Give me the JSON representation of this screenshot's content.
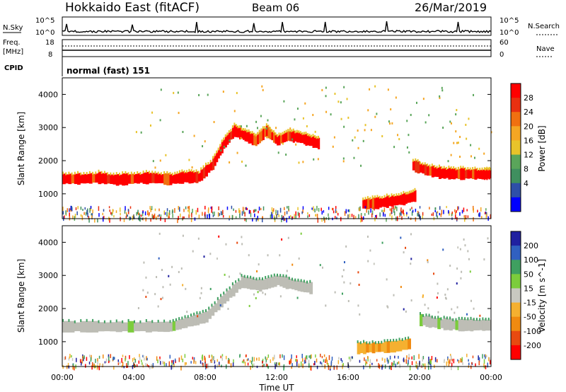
{
  "header": {
    "station": "Hokkaido East (fitACF)",
    "beam": "Beam 06",
    "date": "26/Mar/2019"
  },
  "noise_panel": {
    "left_label": "N.Sky",
    "right_label": "N.Search",
    "ticks_left": [
      "10^5",
      "10^0"
    ],
    "ticks_right": [
      "10^5",
      "10^0"
    ]
  },
  "freq_panel": {
    "left_label_1": "Freq.",
    "left_label_2": "[MHz]",
    "right_label": "Nave",
    "ticks_left": [
      "18",
      "8"
    ],
    "ticks_right": [
      "60",
      "0"
    ],
    "cpid_label": "CPID",
    "cpid_text": "normal (fast) 151"
  },
  "colors": {
    "power_scale": [
      "#0000ff",
      "#2e4fa8",
      "#3f8f5f",
      "#5aa55a",
      "#e8c32a",
      "#f5a623",
      "#f07010",
      "#e83010",
      "#ff0000"
    ],
    "velocity_scale": [
      "#2020a0",
      "#3060c0",
      "#3fa060",
      "#7ccc3c",
      "#c8c8c0",
      "#f5b030",
      "#f08a10",
      "#e84a10",
      "#ff0000"
    ],
    "ground_scatter": "#bdbdb5"
  },
  "chart_data": [
    {
      "type": "heatmap",
      "title": "Power",
      "xlabel": "Time UT",
      "ylabel": "Slant Range [km]",
      "x_ticks": [
        "00:00",
        "04:00",
        "08:00",
        "12:00",
        "16:00",
        "20:00",
        "00:00"
      ],
      "y_ticks": [
        "1000",
        "2000",
        "3000",
        "4000"
      ],
      "ylim": [
        250,
        4500
      ],
      "xlim_hours": [
        0,
        24
      ],
      "colorbar_label": "Power [dB]",
      "colorbar_ticks": [
        "4",
        "8",
        "12",
        "16",
        "20",
        "24",
        "28"
      ],
      "colorbar_range": [
        0,
        32
      ],
      "bands": [
        {
          "t": [
            0.0,
            1.0,
            2.0,
            3.0,
            4.0,
            5.0,
            6.0,
            6.8,
            7.6,
            8.4,
            9.0,
            9.6,
            10.2,
            10.8,
            11.4,
            12.0,
            12.6,
            13.2,
            13.8,
            14.4
          ],
          "r": [
            1450,
            1450,
            1480,
            1420,
            1460,
            1480,
            1430,
            1500,
            1500,
            1900,
            2500,
            2900,
            2750,
            2600,
            2900,
            2600,
            2750,
            2700,
            2600,
            2500
          ],
          "power": 26
        },
        {
          "t": [
            19.6,
            20.4,
            21.2,
            22.0,
            22.8,
            23.6,
            24.0
          ],
          "r": [
            1850,
            1700,
            1620,
            1600,
            1600,
            1580,
            1600
          ],
          "power": 27
        },
        {
          "t": [
            16.8,
            17.6,
            18.4,
            19.2,
            19.8
          ],
          "r": [
            690,
            720,
            780,
            850,
            950
          ],
          "power": 28
        }
      ]
    },
    {
      "type": "heatmap",
      "title": "Velocity",
      "xlabel": "Time UT",
      "ylabel": "Slant Range [km]",
      "x_ticks": [
        "00:00",
        "04:00",
        "08:00",
        "12:00",
        "16:00",
        "20:00",
        "00:00"
      ],
      "y_ticks": [
        "1000",
        "2000",
        "3000",
        "4000"
      ],
      "ylim": [
        250,
        4500
      ],
      "xlim_hours": [
        0,
        24
      ],
      "colorbar_label": "Velocity [m s^-1]",
      "colorbar_ticks": [
        "200",
        "100",
        "50",
        "15",
        "-15",
        "-50",
        "-100",
        "-200"
      ],
      "colorbar_range": [
        -250,
        250
      ],
      "bands": [
        {
          "t": [
            0.0,
            2.0,
            4.0,
            6.0,
            7.0,
            8.0,
            9.0,
            10.0,
            11.0,
            12.0,
            13.0,
            14.0
          ],
          "r": [
            1450,
            1450,
            1450,
            1450,
            1600,
            1750,
            2300,
            2800,
            2700,
            2850,
            2700,
            2600
          ],
          "velocity": 0
        },
        {
          "t": [
            20.0,
            21.0,
            22.0,
            23.0,
            24.0
          ],
          "r": [
            1650,
            1550,
            1500,
            1500,
            1500
          ],
          "velocity": 0
        },
        {
          "t": [
            16.5,
            17.5,
            18.5,
            19.5
          ],
          "r": [
            800,
            820,
            850,
            950
          ],
          "velocity": -40
        }
      ]
    }
  ]
}
